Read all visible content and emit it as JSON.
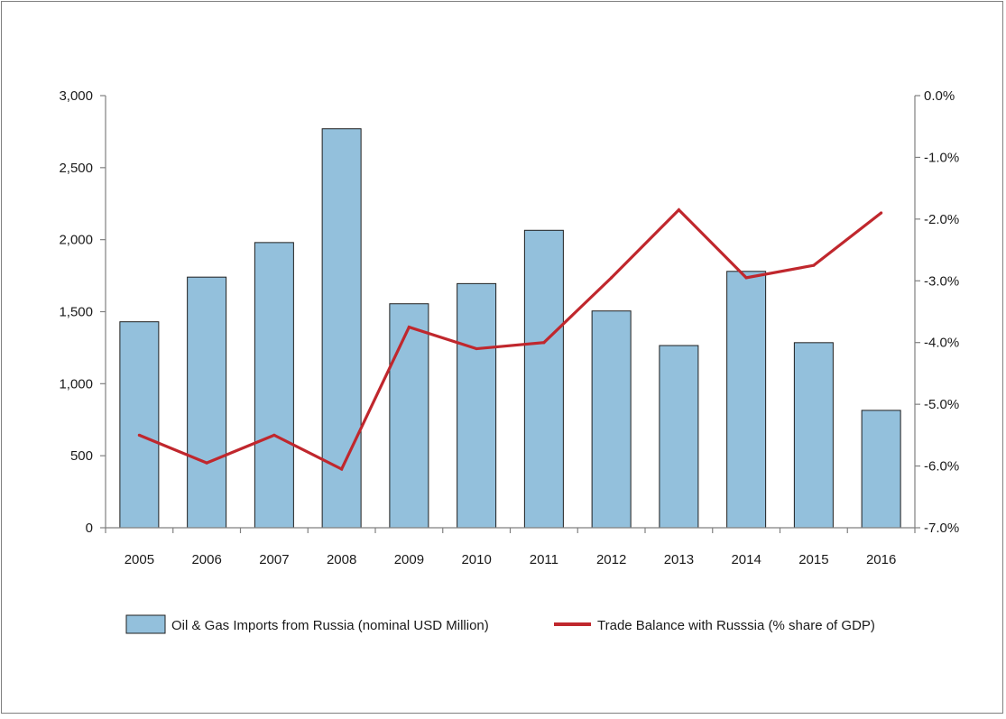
{
  "chart_data": {
    "type": "bar+line",
    "categories": [
      "2005",
      "2006",
      "2007",
      "2008",
      "2009",
      "2010",
      "2011",
      "2012",
      "2013",
      "2014",
      "2015",
      "2016"
    ],
    "series": [
      {
        "name": "Oil & Gas Imports from Russia (nominal USD Million)",
        "type": "bar",
        "axis": "left",
        "color": "#93c0dc",
        "values": [
          1430,
          1740,
          1980,
          2770,
          1555,
          1695,
          2065,
          1505,
          1265,
          1780,
          1285,
          815
        ]
      },
      {
        "name": "Trade Balance with Russsia (% share of GDP)",
        "type": "line",
        "axis": "right",
        "color": "#c0272d",
        "values": [
          -5.5,
          -5.95,
          -5.5,
          -6.05,
          -3.75,
          -4.1,
          -4.0,
          -2.95,
          -1.85,
          -2.95,
          -2.75,
          -1.9
        ]
      }
    ],
    "y_left": {
      "ylim": [
        0,
        3000
      ],
      "ticks": [
        0,
        500,
        1000,
        1500,
        2000,
        2500,
        3000
      ],
      "tick_labels": [
        "0",
        "500",
        "1,000",
        "1,500",
        "2,000",
        "2,500",
        "3,000"
      ]
    },
    "y_right": {
      "ylim": [
        -7.0,
        0.0
      ],
      "ticks": [
        -7,
        -6,
        -5,
        -4,
        -3,
        -2,
        -1,
        0
      ],
      "tick_labels": [
        "-7.0%",
        "-6.0%",
        "-5.0%",
        "-4.0%",
        "-3.0%",
        "-2.0%",
        "-1.0%",
        "0.0%"
      ]
    },
    "legend_position": "bottom",
    "grid": false
  }
}
